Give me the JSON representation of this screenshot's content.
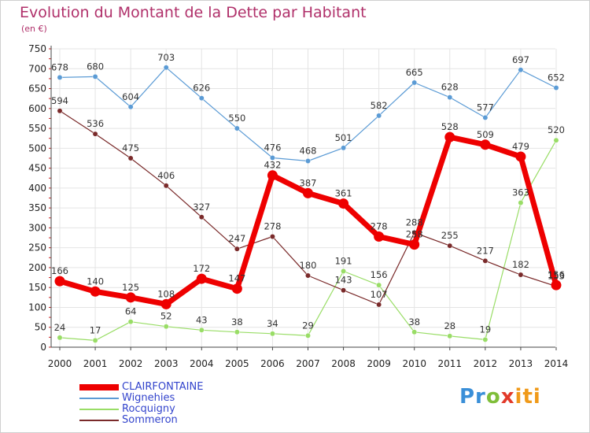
{
  "title": "Evolution du Montant de la Dette par Habitant",
  "subtitle": "(en €)",
  "colors": {
    "title": "#b0306a",
    "legend_text": "#3344cc",
    "grid": "#e4e4e4",
    "axis": "#444444",
    "tick_mark": "#cc2222"
  },
  "logo": {
    "parts": [
      "Pr",
      "o",
      "x",
      "iti"
    ],
    "colors": [
      "#3a8fd8",
      "#7fbe3a",
      "#e23a2a",
      "#f09a1a"
    ]
  },
  "chart_data": {
    "type": "line",
    "title": "Evolution du Montant de la Dette par Habitant",
    "subtitle": "(en €)",
    "xlabel": "",
    "ylabel": "",
    "x": [
      "2000",
      "2001",
      "2002",
      "2003",
      "2004",
      "2005",
      "2006",
      "2007",
      "2008",
      "2009",
      "2010",
      "2011",
      "2012",
      "2013",
      "2014"
    ],
    "yticks": [
      "0",
      "50",
      "100",
      "150",
      "200",
      "250",
      "300",
      "350",
      "400",
      "450",
      "500",
      "550",
      "600",
      "650",
      "700",
      "750"
    ],
    "ylim": [
      0,
      750
    ],
    "grid": true,
    "legend_position": "bottom-left",
    "series": [
      {
        "name": "CLAIRFONTAINE",
        "color": "#ee0000",
        "values": [
          166,
          140,
          125,
          108,
          172,
          147,
          432,
          387,
          361,
          278,
          258,
          528,
          509,
          479,
          156
        ],
        "labels": [
          "166",
          "140",
          "125",
          "108",
          "172",
          "147",
          "432",
          "387",
          "361",
          "278",
          "258",
          "528",
          "509",
          "479",
          "156"
        ]
      },
      {
        "name": "Wignehies",
        "color": "#5b9bd5",
        "values": [
          678,
          680,
          604,
          703,
          626,
          550,
          476,
          468,
          501,
          582,
          665,
          628,
          577,
          697,
          652
        ],
        "labels": [
          "678",
          "680",
          "604",
          "703",
          "626",
          "550",
          "476",
          "468",
          "501",
          "582",
          "665",
          "628",
          "577",
          "697",
          "652"
        ]
      },
      {
        "name": "Rocquigny",
        "color": "#99dd66",
        "values": [
          24,
          17,
          64,
          52,
          43,
          38,
          34,
          29,
          191,
          156,
          38,
          28,
          19,
          363,
          520
        ],
        "labels": [
          "24",
          "17",
          "64",
          "52",
          "43",
          "38",
          "34",
          "29",
          "191",
          "156",
          "38",
          "28",
          "19",
          "363",
          "520"
        ]
      },
      {
        "name": "Sommeron",
        "color": "#7a2a2a",
        "values": [
          594,
          536,
          475,
          406,
          327,
          247,
          278,
          180,
          143,
          107,
          288,
          255,
          217,
          182,
          153
        ],
        "labels": [
          "594",
          "536",
          "475",
          "406",
          "327",
          "247",
          "278",
          "180",
          "143",
          "107",
          "288",
          "255",
          "217",
          "182",
          "153"
        ]
      }
    ]
  }
}
